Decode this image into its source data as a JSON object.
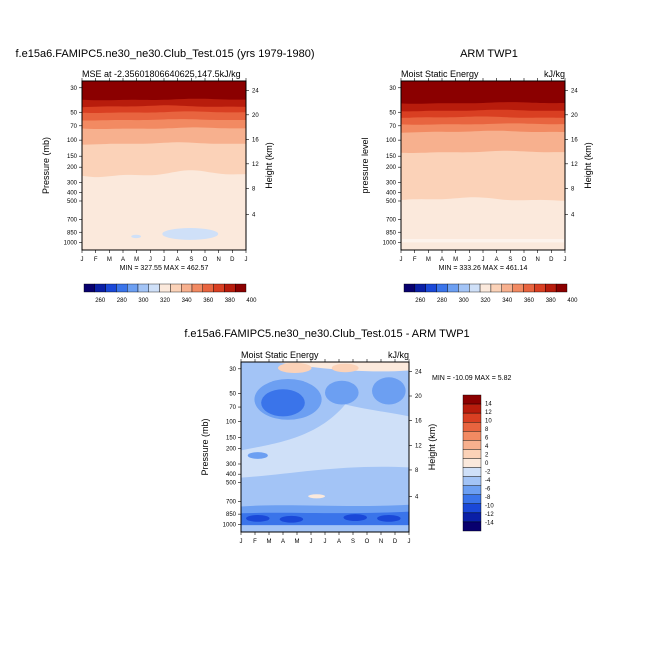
{
  "chart_data": [
    {
      "type": "heatmap",
      "id": "model",
      "title": "f.e15a6.FAMIPC5.ne30_ne30.Club_Test.015 (yrs 1979-1980)",
      "subtitle_left": "MSE at -2.35601806640625,147.5kJ/kg",
      "subtitle_right": "",
      "ylabel": "Pressure (mb)",
      "ylabel_right": "Height (km)",
      "months": [
        "J",
        "F",
        "M",
        "A",
        "M",
        "J",
        "J",
        "A",
        "S",
        "O",
        "N",
        "D",
        "J"
      ],
      "pressure_ticks": [
        "30",
        "50",
        "70",
        "100",
        "150",
        "200",
        "300",
        "400",
        "500",
        "700",
        "850",
        "1000"
      ],
      "height_ticks": [
        "24",
        "20",
        "16",
        "12",
        "8",
        "4"
      ],
      "minmax": "MIN = 327.55 MAX = 462.57",
      "colorbar_labels": [
        "260",
        "280",
        "300",
        "320",
        "340",
        "360",
        "380",
        "400"
      ],
      "contour_boundaries_kJkg": {
        "top_level_400_above_mb": 50,
        "level_360_to_380_mb": [
          50,
          100
        ],
        "level_340_mb": [
          100,
          200
        ],
        "level_330_mb": [
          200,
          1000
        ]
      }
    },
    {
      "type": "heatmap",
      "id": "obs",
      "title": "ARM TWP1",
      "subtitle_left": "Moist Static Energy",
      "subtitle_right": "kJ/kg",
      "ylabel": "pressure level",
      "ylabel_right": "Height (km)",
      "months": [
        "J",
        "F",
        "M",
        "A",
        "M",
        "J",
        "J",
        "A",
        "S",
        "O",
        "N",
        "D",
        "J"
      ],
      "pressure_ticks": [
        "30",
        "50",
        "70",
        "100",
        "150",
        "200",
        "300",
        "400",
        "500",
        "700",
        "850",
        "1000"
      ],
      "height_ticks": [
        "24",
        "20",
        "16",
        "12",
        "8",
        "4"
      ],
      "minmax": "MIN = 333.26 MAX = 461.14",
      "colorbar_labels": [
        "260",
        "280",
        "300",
        "320",
        "340",
        "360",
        "380",
        "400"
      ]
    },
    {
      "type": "heatmap",
      "id": "diff",
      "title": "f.e15a6.FAMIPC5.ne30_ne30.Club_Test.015 - ARM TWP1",
      "subtitle_left": "Moist Static Energy",
      "subtitle_right": "kJ/kg",
      "ylabel": "Pressure (mb)",
      "ylabel_right": "Height (km)",
      "months": [
        "J",
        "F",
        "M",
        "A",
        "M",
        "J",
        "J",
        "A",
        "S",
        "O",
        "N",
        "D",
        "J"
      ],
      "pressure_ticks": [
        "30",
        "50",
        "70",
        "100",
        "150",
        "200",
        "300",
        "400",
        "500",
        "700",
        "850",
        "1000"
      ],
      "height_ticks": [
        "24",
        "20",
        "16",
        "12",
        "8",
        "4"
      ],
      "minmax": "MIN = -10.09 MAX =   5.82",
      "colorbar_labels": [
        "14",
        "12",
        "10",
        "8",
        "6",
        "4",
        "2",
        "0",
        "-2",
        "-4",
        "-6",
        "-8",
        "-10",
        "-12",
        "-14"
      ]
    }
  ],
  "colors": {
    "seq": [
      "#08006e",
      "#0a1fa6",
      "#1a48d8",
      "#3a74ea",
      "#6c9ff2",
      "#a3c4f6",
      "#cfe0f8",
      "#fbe9dc",
      "#fbd2b8",
      "#f7b08e",
      "#f28a62",
      "#e8643f",
      "#d93f22",
      "#b81c0c",
      "#8b0000"
    ],
    "div": [
      "#8b0000",
      "#b81c0c",
      "#d93f22",
      "#e8643f",
      "#f28a62",
      "#f7b08e",
      "#fbd2b8",
      "#fbe9dc",
      "#cfe0f8",
      "#a3c4f6",
      "#6c9ff2",
      "#3a74ea",
      "#1a48d8",
      "#0a1fa6",
      "#08006e"
    ]
  }
}
